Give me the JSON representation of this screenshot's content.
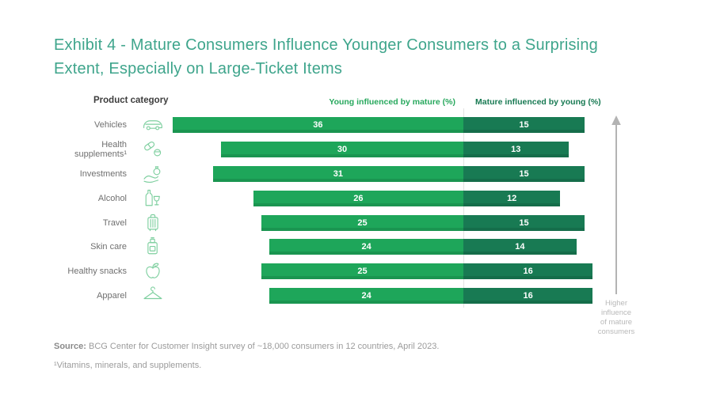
{
  "header": {
    "title": "Exhibit 4 - Mature Consumers Influence Younger Consumers to a Surprising Extent, Especially on Large-Ticket Items"
  },
  "chart_data": {
    "type": "bar",
    "variant": "diverging-horizontal",
    "column_header": "Product category",
    "categories": [
      "Vehicles",
      "Health supplements¹",
      "Investments",
      "Alcohol",
      "Travel",
      "Skin care",
      "Healthy snacks",
      "Apparel"
    ],
    "icons": [
      "car-icon",
      "pills-icon",
      "hand-money-icon",
      "bottle-glass-icon",
      "suitcase-icon",
      "lotion-icon",
      "apple-icon",
      "hanger-icon"
    ],
    "series": [
      {
        "name": "Young influenced by mature (%)",
        "color": "#1ea65a",
        "text_color": "#27a85d",
        "values": [
          36,
          30,
          31,
          26,
          25,
          24,
          25,
          24
        ]
      },
      {
        "name": "Mature influenced by young (%)",
        "color": "#187a53",
        "text_color": "#187a53",
        "values": [
          15,
          13,
          15,
          12,
          15,
          14,
          16,
          16
        ]
      }
    ],
    "value_unit": "%",
    "annotation_lines": [
      "Higher",
      "influence",
      "of mature",
      "consumers"
    ],
    "annotation_arrow_color": "#b3b3b3",
    "legend_position": "top"
  },
  "footer": {
    "source_label": "Source:",
    "source_text": " BCG Center for Customer Insight survey of ~18,000 consumers in 12 countries, April 2023.",
    "footnote": "¹Vitamins, minerals, and supplements."
  }
}
